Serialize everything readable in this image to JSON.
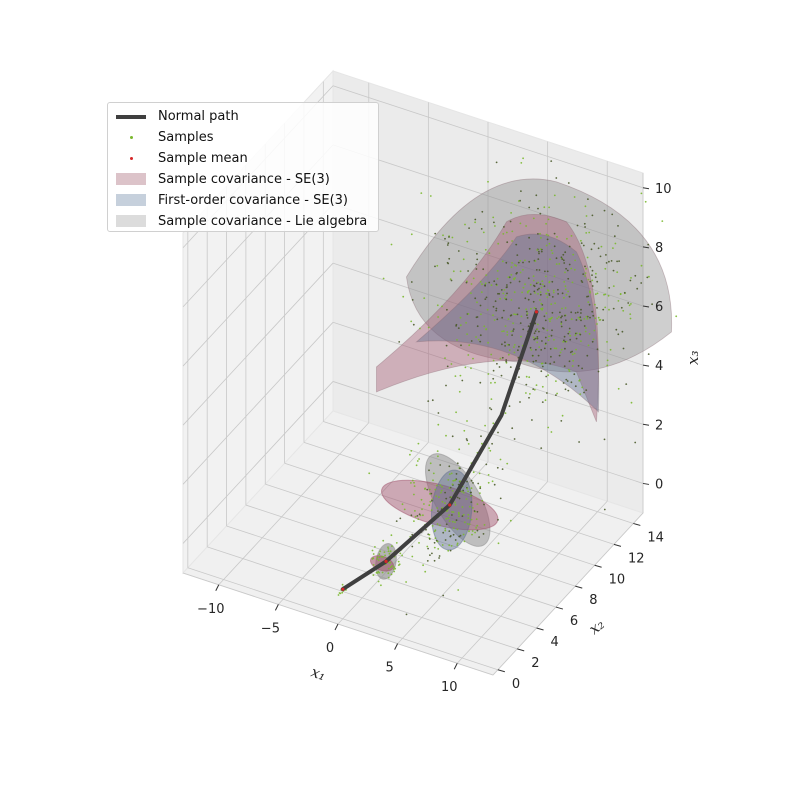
{
  "chart_data": {
    "type": "scatter",
    "projection": "3d",
    "grid": true,
    "legend_position": "upper-left",
    "axes": {
      "x1": {
        "label": "x₁",
        "lim": [
          -13,
          13
        ],
        "ticks": [
          -10,
          -5,
          0,
          5,
          10
        ],
        "tick_labels": [
          "−10",
          "−5",
          "0",
          "5",
          "10"
        ]
      },
      "x2": {
        "label": "x₂",
        "lim": [
          -0.5,
          15
        ],
        "ticks": [
          0,
          2,
          4,
          6,
          8,
          10,
          12,
          14
        ],
        "tick_labels": [
          "0",
          "2",
          "4",
          "6",
          "8",
          "10",
          "12",
          "14"
        ]
      },
      "x3": {
        "label": "x₃",
        "lim": [
          -1,
          10.5
        ],
        "ticks": [
          0,
          2,
          4,
          6,
          8,
          10
        ],
        "tick_labels": [
          "0",
          "2",
          "4",
          "6",
          "8",
          "10"
        ]
      }
    },
    "legend": [
      {
        "label": "Normal path",
        "kind": "line",
        "color": "#3f3f3f"
      },
      {
        "label": "Samples",
        "kind": "point",
        "color": "#7ab82e"
      },
      {
        "label": "Sample mean",
        "kind": "point",
        "color": "#d62728"
      },
      {
        "label": "Sample covariance - SE(3)",
        "kind": "patch",
        "color": "#d7b6be"
      },
      {
        "label": "First-order covariance - SE(3)",
        "kind": "patch",
        "color": "#c0ccd9"
      },
      {
        "label": "Sample covariance - Lie algebra",
        "kind": "patch",
        "color": "#d9d9d9"
      }
    ],
    "series": [
      {
        "name": "Normal path",
        "points": [
          [
            0,
            0,
            0
          ],
          [
            2,
            2,
            0.5
          ],
          [
            4.5,
            5.5,
            1.5
          ],
          [
            6,
            9,
            3.5
          ],
          [
            6.5,
            12,
            6
          ]
        ]
      },
      {
        "name": "Sample mean",
        "points": [
          [
            0,
            0,
            0
          ],
          [
            2,
            2,
            0.5
          ],
          [
            4.5,
            5.5,
            1.5
          ],
          [
            6.5,
            12,
            6
          ]
        ]
      }
    ],
    "clusters": [
      {
        "name": "Samples",
        "center": [
          0,
          0,
          0
        ],
        "spread": [
          0.15,
          0.15,
          0.05
        ],
        "count": 15
      },
      {
        "name": "Samples",
        "center": [
          2,
          2,
          0.5
        ],
        "spread": [
          0.5,
          0.6,
          0.25
        ],
        "count": 60
      },
      {
        "name": "Samples",
        "center": [
          4.5,
          5.5,
          1.5
        ],
        "spread": [
          1.4,
          1.6,
          0.9
        ],
        "count": 260
      },
      {
        "name": "Samples",
        "center": [
          6.5,
          12,
          6
        ],
        "spread": [
          3.5,
          2.6,
          1.5
        ],
        "count": 700
      }
    ]
  }
}
